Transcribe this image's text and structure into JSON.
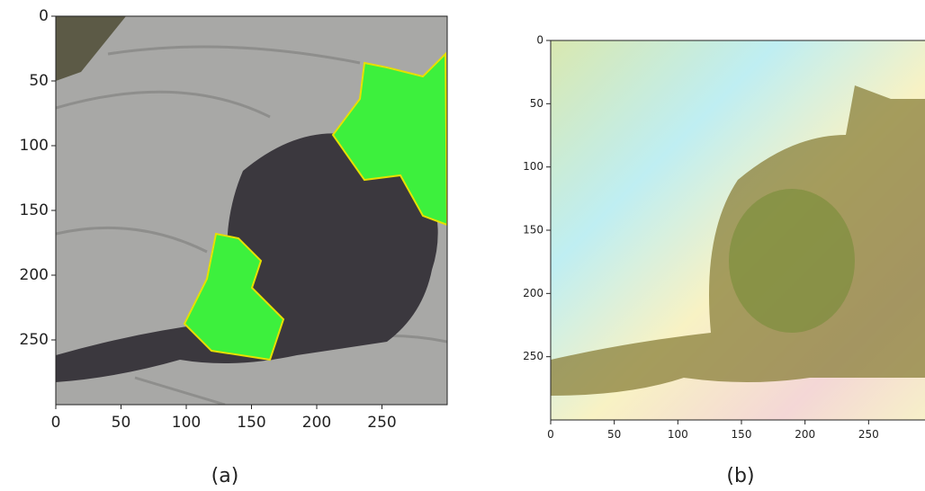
{
  "chart_data": [
    {
      "type": "image",
      "caption": "(a)",
      "xlim": [
        0,
        300
      ],
      "ylim": [
        300,
        0
      ],
      "xticks": [
        0,
        50,
        100,
        150,
        200,
        250
      ],
      "yticks": [
        0,
        50,
        100,
        150,
        200,
        250
      ]
    },
    {
      "type": "image",
      "caption": "(b)",
      "xlim": [
        0,
        300
      ],
      "ylim": [
        300,
        0
      ],
      "xticks": [
        0,
        50,
        100,
        150,
        200,
        250
      ],
      "yticks": [
        0,
        50,
        100,
        150,
        200,
        250
      ]
    }
  ]
}
